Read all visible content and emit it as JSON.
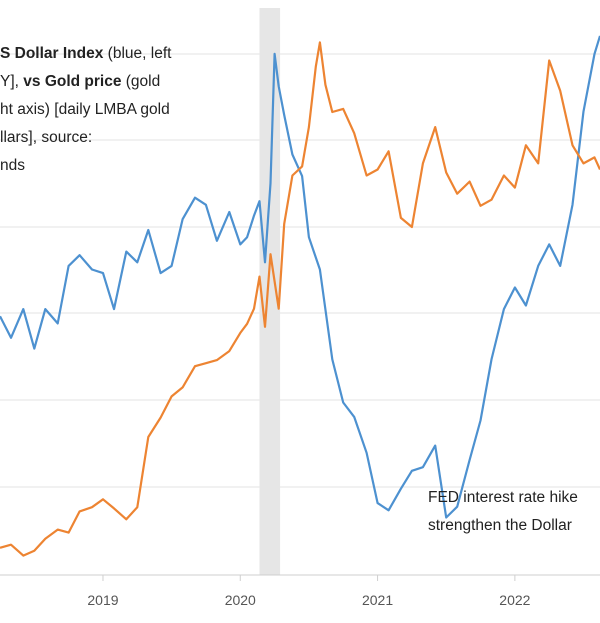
{
  "title": {
    "lines": [
      [
        {
          "t": "S Dollar Index",
          "b": true
        },
        {
          "t": " (blue, left",
          "b": false
        }
      ],
      [
        {
          "t": "Y], ",
          "b": false
        },
        {
          "t": "vs Gold price",
          "b": true
        },
        {
          "t": " (gold",
          "b": false
        }
      ],
      [
        {
          "t": "ht axis) [daily LMBA gold",
          "b": false
        }
      ],
      [
        {
          "t": "llars], source:",
          "b": false
        }
      ],
      [
        {
          "t": "nds",
          "b": false
        }
      ]
    ]
  },
  "annotation": {
    "line1": "FED interest rate hike",
    "line2": "strengthen the Dollar"
  },
  "chart_data": {
    "type": "line",
    "title": "",
    "xlabel": "",
    "ylabel": "",
    "grid": true,
    "x_ticks": [
      "2019",
      "2020",
      "2021",
      "2022"
    ],
    "x_tick_years": [
      2019,
      2020,
      2021,
      2022
    ],
    "xlim": [
      2018.25,
      2022.62
    ],
    "shaded_region": [
      2020.14,
      2020.29
    ],
    "left_axis": {
      "range": [
        88,
        104
      ],
      "note": "US Dollar Index"
    },
    "right_axis": {
      "range": [
        1150,
        2100
      ],
      "note": "Gold price (USD)"
    },
    "series": [
      {
        "name": "",
        "axis": "left",
        "color": "#4d91d0",
        "x": [
          2018.25,
          2018.33,
          2018.42,
          2018.5,
          2018.58,
          2018.67,
          2018.75,
          2018.83,
          2018.92,
          2019.0,
          2019.08,
          2019.17,
          2019.25,
          2019.33,
          2019.42,
          2019.5,
          2019.58,
          2019.67,
          2019.75,
          2019.83,
          2019.92,
          2020.0,
          2020.05,
          2020.1,
          2020.14,
          2020.18,
          2020.22,
          2020.25,
          2020.28,
          2020.32,
          2020.38,
          2020.45,
          2020.5,
          2020.58,
          2020.67,
          2020.75,
          2020.83,
          2020.92,
          2021.0,
          2021.08,
          2021.17,
          2021.25,
          2021.33,
          2021.42,
          2021.5,
          2021.58,
          2021.67,
          2021.75,
          2021.83,
          2021.92,
          2022.0,
          2022.08,
          2022.17,
          2022.25,
          2022.33,
          2022.42,
          2022.5,
          2022.58,
          2022.62
        ],
        "y": [
          95.2,
          94.6,
          95.4,
          94.3,
          95.4,
          95.0,
          96.6,
          96.9,
          96.5,
          96.4,
          95.4,
          97.0,
          96.7,
          97.6,
          96.4,
          96.6,
          97.9,
          98.5,
          98.3,
          97.3,
          98.1,
          97.2,
          97.4,
          98.0,
          98.4,
          96.7,
          98.9,
          102.5,
          101.6,
          100.8,
          99.7,
          99.1,
          97.4,
          96.5,
          94.0,
          92.8,
          92.4,
          91.4,
          90.0,
          89.8,
          90.4,
          90.9,
          91.0,
          91.6,
          89.6,
          89.9,
          91.2,
          92.3,
          94.0,
          95.4,
          96.0,
          95.5,
          96.6,
          97.2,
          96.6,
          98.3,
          100.9,
          102.5,
          103.0
        ]
      },
      {
        "name": "",
        "axis": "right",
        "color": "#ed8432",
        "x": [
          2018.25,
          2018.33,
          2018.42,
          2018.5,
          2018.58,
          2018.67,
          2018.75,
          2018.83,
          2018.92,
          2019.0,
          2019.08,
          2019.17,
          2019.25,
          2019.33,
          2019.42,
          2019.5,
          2019.58,
          2019.67,
          2019.75,
          2019.83,
          2019.92,
          2020.0,
          2020.05,
          2020.1,
          2020.14,
          2020.18,
          2020.22,
          2020.25,
          2020.28,
          2020.32,
          2020.38,
          2020.45,
          2020.5,
          2020.55,
          2020.58,
          2020.62,
          2020.67,
          2020.75,
          2020.83,
          2020.92,
          2021.0,
          2021.08,
          2021.17,
          2021.25,
          2021.33,
          2021.42,
          2021.5,
          2021.58,
          2021.67,
          2021.75,
          2021.83,
          2021.92,
          2022.0,
          2022.08,
          2022.17,
          2022.25,
          2022.33,
          2022.42,
          2022.5,
          2022.58,
          2022.62
        ],
        "y": [
          1195,
          1200,
          1182,
          1190,
          1210,
          1225,
          1220,
          1255,
          1262,
          1275,
          1260,
          1242,
          1262,
          1378,
          1410,
          1445,
          1460,
          1495,
          1500,
          1505,
          1520,
          1550,
          1565,
          1590,
          1643,
          1560,
          1680,
          1635,
          1590,
          1730,
          1810,
          1825,
          1890,
          1990,
          2030,
          1960,
          1915,
          1920,
          1880,
          1810,
          1820,
          1850,
          1740,
          1725,
          1830,
          1890,
          1815,
          1780,
          1800,
          1760,
          1770,
          1810,
          1790,
          1860,
          1830,
          2000,
          1950,
          1860,
          1830,
          1840,
          1820
        ]
      }
    ]
  }
}
